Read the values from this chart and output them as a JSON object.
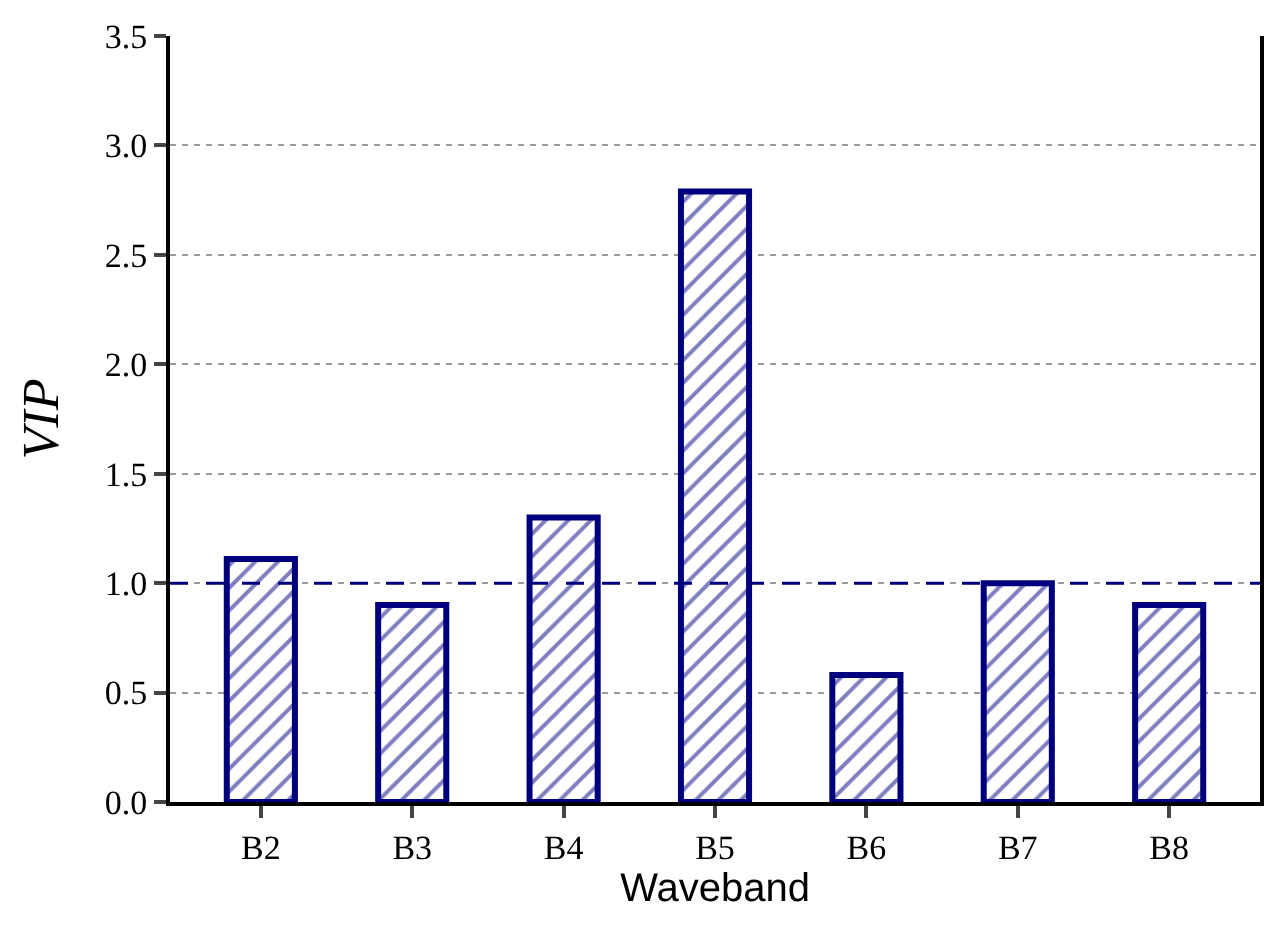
{
  "chart_data": {
    "type": "bar",
    "xlabel": "Waveband",
    "ylabel": "VIP",
    "categories": [
      "B2",
      "B3",
      "B4",
      "B5",
      "B6",
      "B7",
      "B8"
    ],
    "values": [
      1.11,
      0.9,
      1.3,
      2.79,
      0.58,
      1.0,
      0.9
    ],
    "color": "#00007f",
    "ylim": [
      0,
      3.5
    ],
    "yticks": [
      {
        "value": 0,
        "label": "0.0"
      },
      0.5,
      {
        "value": 1,
        "label": "1.0"
      },
      1.5,
      {
        "value": 2,
        "label": "2.0"
      },
      2.5,
      {
        "value": 3,
        "label": "3.0"
      },
      3.5
    ],
    "grid": "y",
    "ref_lines": [
      {
        "axis": "y",
        "value": 1.0,
        "color": "#00007f",
        "line_style": "dashed"
      }
    ]
  }
}
